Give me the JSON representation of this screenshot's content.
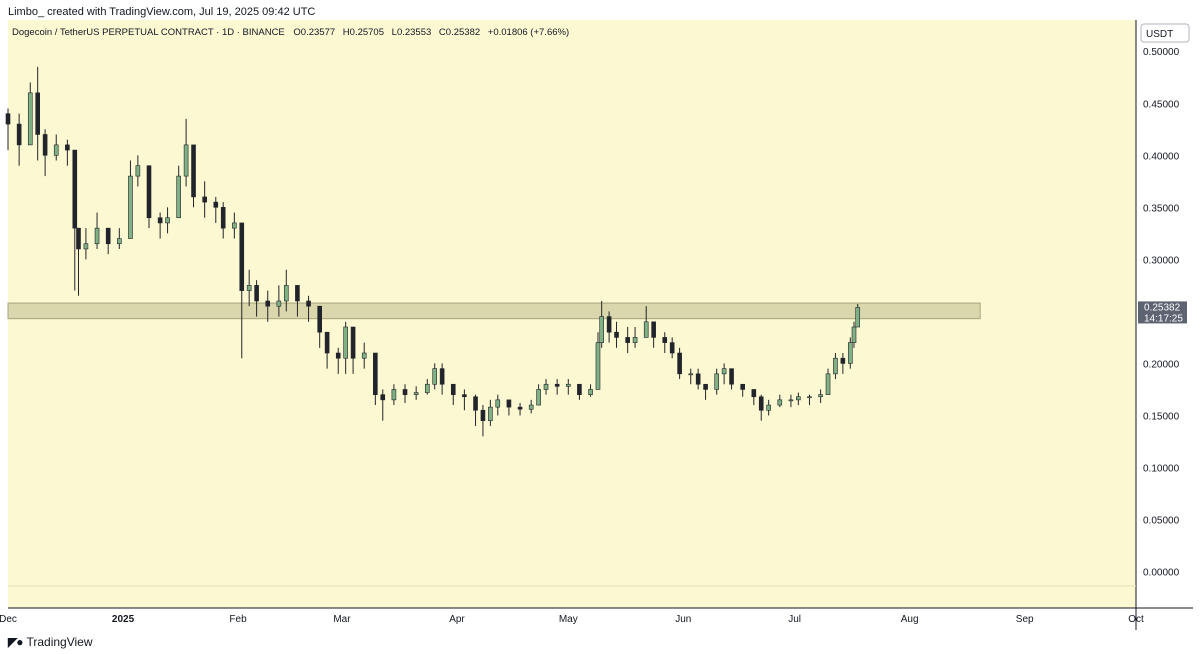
{
  "header": {
    "attribution": "Limbo_ created with TradingView.com, Jul 19, 2025 09:42 UTC"
  },
  "footer": {
    "brand": "TradingView",
    "icon": "tradingview-logo-icon"
  },
  "colors": {
    "background": "#fbf8d2",
    "up": "#7fb185",
    "down": "#22242b",
    "zone_fill": "#d3d1a6",
    "zone_stroke": "#a7a57c",
    "price_tag": "#5d6371"
  },
  "chart_data": {
    "type": "candlestick",
    "title": "Dogecoin / TetherUS PERPETUAL CONTRACT · 1D · BINANCE",
    "ohlc_readout": {
      "O": "0.23577",
      "H": "0.25705",
      "L": "0.23553",
      "C": "0.25382",
      "change": "+0.01806 (+7.66%)"
    },
    "currency_label": "USDT",
    "y_axis": {
      "min": -0.035,
      "max": 0.53,
      "ticks": [
        "0.50000",
        "0.45000",
        "0.40000",
        "0.35000",
        "0.30000",
        "0.25000",
        "0.20000",
        "0.15000",
        "0.10000",
        "0.05000",
        "0.00000"
      ]
    },
    "x_axis": {
      "start": "2024-12-01",
      "end": "2025-10-01",
      "ticks": [
        {
          "label": "Dec",
          "date": "2024-12-01"
        },
        {
          "label": "2025",
          "date": "2025-01-01"
        },
        {
          "label": "Feb",
          "date": "2025-02-01"
        },
        {
          "label": "Mar",
          "date": "2025-03-01"
        },
        {
          "label": "Apr",
          "date": "2025-04-01"
        },
        {
          "label": "May",
          "date": "2025-05-01"
        },
        {
          "label": "Jun",
          "date": "2025-06-01"
        },
        {
          "label": "Jul",
          "date": "2025-07-01"
        },
        {
          "label": "Aug",
          "date": "2025-08-01"
        },
        {
          "label": "Sep",
          "date": "2025-09-01"
        },
        {
          "label": "Oct",
          "date": "2025-10-01"
        }
      ]
    },
    "resistance_zone": {
      "low": 0.243,
      "high": 0.258,
      "from": "2024-12-01",
      "to": "2025-08-20"
    },
    "last_price": {
      "value": "0.25382",
      "countdown": "14:17:25"
    },
    "series": [
      {
        "date": "2024-12-01",
        "close": 0.43,
        "high": 0.445,
        "low": 0.405
      },
      {
        "date": "2024-12-04",
        "close": 0.41,
        "high": 0.44,
        "low": 0.39
      },
      {
        "date": "2024-12-07",
        "close": 0.46,
        "high": 0.47,
        "low": 0.41
      },
      {
        "date": "2024-12-09",
        "close": 0.42,
        "high": 0.485,
        "low": 0.395
      },
      {
        "date": "2024-12-11",
        "close": 0.4,
        "high": 0.425,
        "low": 0.38
      },
      {
        "date": "2024-12-14",
        "close": 0.41,
        "high": 0.42,
        "low": 0.395
      },
      {
        "date": "2024-12-17",
        "close": 0.405,
        "high": 0.415,
        "low": 0.39
      },
      {
        "date": "2024-12-19",
        "close": 0.33,
        "high": 0.36,
        "low": 0.27
      },
      {
        "date": "2024-12-20",
        "close": 0.31,
        "high": 0.33,
        "low": 0.265
      },
      {
        "date": "2024-12-22",
        "close": 0.315,
        "high": 0.33,
        "low": 0.3
      },
      {
        "date": "2024-12-25",
        "close": 0.33,
        "high": 0.345,
        "low": 0.31
      },
      {
        "date": "2024-12-28",
        "close": 0.315,
        "high": 0.33,
        "low": 0.305
      },
      {
        "date": "2024-12-31",
        "close": 0.32,
        "high": 0.33,
        "low": 0.31
      },
      {
        "date": "2025-01-03",
        "close": 0.38,
        "high": 0.395,
        "low": 0.325
      },
      {
        "date": "2025-01-05",
        "close": 0.39,
        "high": 0.4,
        "low": 0.37
      },
      {
        "date": "2025-01-08",
        "close": 0.34,
        "high": 0.38,
        "low": 0.33
      },
      {
        "date": "2025-01-11",
        "close": 0.335,
        "high": 0.345,
        "low": 0.32
      },
      {
        "date": "2025-01-13",
        "close": 0.34,
        "high": 0.35,
        "low": 0.325
      },
      {
        "date": "2025-01-16",
        "close": 0.38,
        "high": 0.39,
        "low": 0.34
      },
      {
        "date": "2025-01-18",
        "close": 0.41,
        "high": 0.435,
        "low": 0.37
      },
      {
        "date": "2025-01-20",
        "close": 0.36,
        "high": 0.405,
        "low": 0.35
      },
      {
        "date": "2025-01-23",
        "close": 0.355,
        "high": 0.375,
        "low": 0.34
      },
      {
        "date": "2025-01-26",
        "close": 0.35,
        "high": 0.36,
        "low": 0.335
      },
      {
        "date": "2025-01-28",
        "close": 0.33,
        "high": 0.355,
        "low": 0.32
      },
      {
        "date": "2025-01-31",
        "close": 0.335,
        "high": 0.345,
        "low": 0.32
      },
      {
        "date": "2025-02-02",
        "close": 0.27,
        "high": 0.32,
        "low": 0.205
      },
      {
        "date": "2025-02-04",
        "close": 0.275,
        "high": 0.29,
        "low": 0.255
      },
      {
        "date": "2025-02-06",
        "close": 0.26,
        "high": 0.28,
        "low": 0.245
      },
      {
        "date": "2025-02-09",
        "close": 0.255,
        "high": 0.27,
        "low": 0.24
      },
      {
        "date": "2025-02-12",
        "close": 0.26,
        "high": 0.275,
        "low": 0.245
      },
      {
        "date": "2025-02-14",
        "close": 0.275,
        "high": 0.29,
        "low": 0.25
      },
      {
        "date": "2025-02-17",
        "close": 0.26,
        "high": 0.275,
        "low": 0.245
      },
      {
        "date": "2025-02-20",
        "close": 0.255,
        "high": 0.265,
        "low": 0.24
      },
      {
        "date": "2025-02-23",
        "close": 0.23,
        "high": 0.255,
        "low": 0.215
      },
      {
        "date": "2025-02-25",
        "close": 0.21,
        "high": 0.23,
        "low": 0.195
      },
      {
        "date": "2025-02-28",
        "close": 0.205,
        "high": 0.215,
        "low": 0.19
      },
      {
        "date": "2025-03-02",
        "close": 0.235,
        "high": 0.24,
        "low": 0.19
      },
      {
        "date": "2025-03-04",
        "close": 0.205,
        "high": 0.23,
        "low": 0.19
      },
      {
        "date": "2025-03-07",
        "close": 0.21,
        "high": 0.22,
        "low": 0.195
      },
      {
        "date": "2025-03-10",
        "close": 0.17,
        "high": 0.2,
        "low": 0.16
      },
      {
        "date": "2025-03-12",
        "close": 0.165,
        "high": 0.175,
        "low": 0.145
      },
      {
        "date": "2025-03-15",
        "close": 0.175,
        "high": 0.18,
        "low": 0.16
      },
      {
        "date": "2025-03-18",
        "close": 0.17,
        "high": 0.18,
        "low": 0.162
      },
      {
        "date": "2025-03-21",
        "close": 0.172,
        "high": 0.178,
        "low": 0.165
      },
      {
        "date": "2025-03-24",
        "close": 0.18,
        "high": 0.185,
        "low": 0.17
      },
      {
        "date": "2025-03-26",
        "close": 0.195,
        "high": 0.2,
        "low": 0.175
      },
      {
        "date": "2025-03-28",
        "close": 0.18,
        "high": 0.2,
        "low": 0.17
      },
      {
        "date": "2025-03-31",
        "close": 0.17,
        "high": 0.18,
        "low": 0.16
      },
      {
        "date": "2025-04-03",
        "close": 0.168,
        "high": 0.175,
        "low": 0.155
      },
      {
        "date": "2025-04-06",
        "close": 0.155,
        "high": 0.17,
        "low": 0.14
      },
      {
        "date": "2025-04-08",
        "close": 0.145,
        "high": 0.16,
        "low": 0.13
      },
      {
        "date": "2025-04-10",
        "close": 0.158,
        "high": 0.165,
        "low": 0.14
      },
      {
        "date": "2025-04-12",
        "close": 0.165,
        "high": 0.17,
        "low": 0.15
      },
      {
        "date": "2025-04-15",
        "close": 0.158,
        "high": 0.165,
        "low": 0.15
      },
      {
        "date": "2025-04-18",
        "close": 0.156,
        "high": 0.162,
        "low": 0.15
      },
      {
        "date": "2025-04-21",
        "close": 0.16,
        "high": 0.165,
        "low": 0.152
      },
      {
        "date": "2025-04-23",
        "close": 0.175,
        "high": 0.18,
        "low": 0.16
      },
      {
        "date": "2025-04-25",
        "close": 0.18,
        "high": 0.185,
        "low": 0.17
      },
      {
        "date": "2025-04-28",
        "close": 0.178,
        "high": 0.185,
        "low": 0.17
      },
      {
        "date": "2025-05-01",
        "close": 0.18,
        "high": 0.185,
        "low": 0.17
      },
      {
        "date": "2025-05-04",
        "close": 0.17,
        "high": 0.18,
        "low": 0.165
      },
      {
        "date": "2025-05-07",
        "close": 0.175,
        "high": 0.18,
        "low": 0.168
      },
      {
        "date": "2025-05-09",
        "close": 0.22,
        "high": 0.23,
        "low": 0.18
      },
      {
        "date": "2025-05-10",
        "close": 0.245,
        "high": 0.26,
        "low": 0.215
      },
      {
        "date": "2025-05-12",
        "close": 0.23,
        "high": 0.25,
        "low": 0.22
      },
      {
        "date": "2025-05-14",
        "close": 0.225,
        "high": 0.24,
        "low": 0.215
      },
      {
        "date": "2025-05-17",
        "close": 0.22,
        "high": 0.235,
        "low": 0.21
      },
      {
        "date": "2025-05-19",
        "close": 0.225,
        "high": 0.235,
        "low": 0.215
      },
      {
        "date": "2025-05-22",
        "close": 0.24,
        "high": 0.255,
        "low": 0.225
      },
      {
        "date": "2025-05-24",
        "close": 0.225,
        "high": 0.235,
        "low": 0.215
      },
      {
        "date": "2025-05-27",
        "close": 0.22,
        "high": 0.23,
        "low": 0.21
      },
      {
        "date": "2025-05-29",
        "close": 0.21,
        "high": 0.225,
        "low": 0.205
      },
      {
        "date": "2025-05-31",
        "close": 0.19,
        "high": 0.215,
        "low": 0.185
      },
      {
        "date": "2025-06-03",
        "close": 0.19,
        "high": 0.195,
        "low": 0.18
      },
      {
        "date": "2025-06-05",
        "close": 0.18,
        "high": 0.195,
        "low": 0.175
      },
      {
        "date": "2025-06-07",
        "close": 0.175,
        "high": 0.18,
        "low": 0.165
      },
      {
        "date": "2025-06-10",
        "close": 0.19,
        "high": 0.195,
        "low": 0.17
      },
      {
        "date": "2025-06-12",
        "close": 0.195,
        "high": 0.2,
        "low": 0.18
      },
      {
        "date": "2025-06-14",
        "close": 0.18,
        "high": 0.195,
        "low": 0.175
      },
      {
        "date": "2025-06-17",
        "close": 0.175,
        "high": 0.18,
        "low": 0.168
      },
      {
        "date": "2025-06-20",
        "close": 0.168,
        "high": 0.175,
        "low": 0.16
      },
      {
        "date": "2025-06-22",
        "close": 0.155,
        "high": 0.17,
        "low": 0.145
      },
      {
        "date": "2025-06-24",
        "close": 0.16,
        "high": 0.165,
        "low": 0.15
      },
      {
        "date": "2025-06-27",
        "close": 0.165,
        "high": 0.17,
        "low": 0.158
      },
      {
        "date": "2025-06-30",
        "close": 0.165,
        "high": 0.17,
        "low": 0.158
      },
      {
        "date": "2025-07-02",
        "close": 0.168,
        "high": 0.172,
        "low": 0.16
      },
      {
        "date": "2025-07-05",
        "close": 0.168,
        "high": 0.17,
        "low": 0.16
      },
      {
        "date": "2025-07-08",
        "close": 0.17,
        "high": 0.175,
        "low": 0.162
      },
      {
        "date": "2025-07-10",
        "close": 0.19,
        "high": 0.195,
        "low": 0.17
      },
      {
        "date": "2025-07-12",
        "close": 0.205,
        "high": 0.21,
        "low": 0.185
      },
      {
        "date": "2025-07-14",
        "close": 0.2,
        "high": 0.21,
        "low": 0.19
      },
      {
        "date": "2025-07-16",
        "close": 0.22,
        "high": 0.225,
        "low": 0.195
      },
      {
        "date": "2025-07-17",
        "close": 0.235,
        "high": 0.24,
        "low": 0.215
      },
      {
        "date": "2025-07-18",
        "close": 0.2538,
        "high": 0.2571,
        "low": 0.2355
      }
    ]
  }
}
